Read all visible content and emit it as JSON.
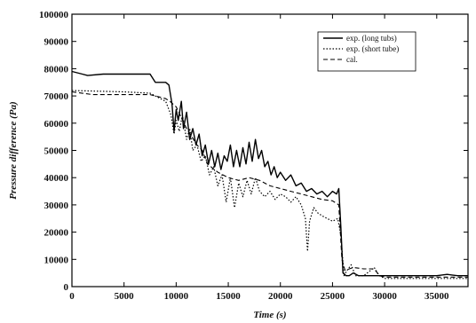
{
  "chart_data": {
    "type": "line",
    "title": "",
    "xlabel": "Time (s)",
    "ylabel": "Pressure difference (Pa)",
    "xlim": [
      0,
      38000
    ],
    "ylim": [
      0,
      100000
    ],
    "xticks": [
      0,
      5000,
      10000,
      15000,
      20000,
      25000,
      30000,
      35000
    ],
    "yticks": [
      0,
      10000,
      20000,
      30000,
      40000,
      50000,
      60000,
      70000,
      80000,
      90000,
      100000
    ],
    "grid": false,
    "legend_position": "top-right",
    "series": [
      {
        "name": "exp. (long tubs)",
        "style": "solid",
        "x": [
          0,
          1000,
          1500,
          3000,
          5000,
          6000,
          7500,
          8000,
          8200,
          9000,
          9300,
          9600,
          9800,
          10000,
          10200,
          10500,
          10700,
          11000,
          11300,
          11600,
          11900,
          12200,
          12500,
          12800,
          13100,
          13400,
          13700,
          14000,
          14300,
          14600,
          14900,
          15200,
          15500,
          15800,
          16100,
          16400,
          16700,
          17000,
          17300,
          17600,
          17900,
          18200,
          18500,
          18800,
          19100,
          19400,
          19700,
          20000,
          20500,
          21000,
          21500,
          22000,
          22500,
          23000,
          23500,
          24000,
          24500,
          25000,
          25400,
          25600,
          25800,
          26000,
          26300,
          26600,
          27000,
          27500,
          28000,
          29000,
          30000,
          31000,
          32000,
          33000,
          34000,
          35000,
          36000,
          37000,
          38000
        ],
        "y": [
          79000,
          78000,
          77500,
          78000,
          78000,
          78000,
          78000,
          75000,
          75000,
          75000,
          74000,
          67000,
          57000,
          65000,
          61000,
          68000,
          58000,
          64000,
          54000,
          58000,
          52000,
          56000,
          48000,
          52000,
          45000,
          50000,
          44000,
          49000,
          43000,
          48000,
          46000,
          52000,
          44000,
          50000,
          44000,
          51000,
          45000,
          53000,
          46000,
          54000,
          47000,
          50000,
          44000,
          46000,
          41000,
          44000,
          40000,
          42000,
          39000,
          41000,
          37000,
          38000,
          35000,
          36000,
          34000,
          35000,
          33000,
          35000,
          34000,
          36000,
          22000,
          5000,
          4000,
          4000,
          5000,
          4000,
          4000,
          4000,
          4000,
          4000,
          4000,
          4000,
          4000,
          4000,
          4500,
          4000,
          4000
        ]
      },
      {
        "name": "exp. (short tube)",
        "style": "dotted",
        "x": [
          0,
          5000,
          7500,
          8000,
          9000,
          9500,
          9800,
          10000,
          10300,
          10600,
          11000,
          11300,
          11600,
          12000,
          12400,
          12800,
          13200,
          13600,
          14000,
          14400,
          14800,
          15200,
          15600,
          16000,
          16400,
          16800,
          17200,
          17600,
          18000,
          18500,
          19000,
          19500,
          20000,
          20500,
          21000,
          21500,
          22000,
          22400,
          22600,
          22800,
          23200,
          23600,
          24000,
          24500,
          25000,
          25500,
          25800,
          26100,
          26400,
          26800,
          27200,
          28000,
          29000,
          29500,
          30000,
          31000,
          32000,
          33000,
          34000,
          35000,
          36000,
          37000,
          38000
        ],
        "y": [
          72000,
          71500,
          71000,
          70000,
          68000,
          63000,
          56000,
          61000,
          57000,
          63000,
          54000,
          58000,
          50000,
          52000,
          46000,
          48000,
          41000,
          44000,
          37000,
          41000,
          31000,
          40000,
          29000,
          38000,
          33000,
          39000,
          34000,
          40000,
          35000,
          33000,
          35000,
          32000,
          34000,
          33000,
          31000,
          33000,
          30000,
          25000,
          13000,
          24000,
          29000,
          27000,
          26000,
          25000,
          24000,
          25000,
          19000,
          4000,
          6000,
          8000,
          4000,
          4000,
          7000,
          4000,
          3000,
          3000,
          3000,
          3000,
          3000,
          3000,
          3000,
          3000,
          3000
        ]
      },
      {
        "name": "cal.",
        "style": "dashed",
        "x": [
          0,
          2000,
          4000,
          7500,
          8000,
          9000,
          9400,
          10000,
          10500,
          11000,
          11500,
          12000,
          12500,
          13000,
          14000,
          15000,
          16000,
          17000,
          18000,
          19000,
          20000,
          21000,
          22000,
          23000,
          24000,
          25000,
          25600,
          25900,
          26200,
          27000,
          28000,
          29000,
          29500,
          30000,
          32000,
          34000,
          36000,
          38000
        ],
        "y": [
          71500,
          70500,
          70500,
          70500,
          70000,
          69000,
          68000,
          66000,
          62000,
          58000,
          55000,
          52000,
          50000,
          45000,
          42000,
          40000,
          39000,
          40000,
          39000,
          37000,
          36000,
          35000,
          34000,
          33000,
          32000,
          31500,
          30000,
          10000,
          6000,
          7000,
          6500,
          6500,
          4000,
          3500,
          3500,
          3500,
          3500,
          3500
        ]
      }
    ]
  }
}
